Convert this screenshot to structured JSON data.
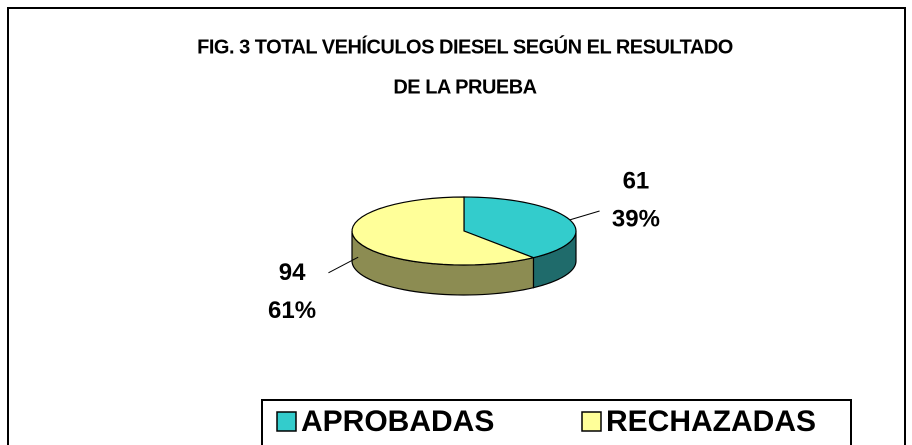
{
  "chart_data": {
    "type": "pie3d",
    "title": [
      "FIG. 3 TOTAL VEHÍCULOS DIESEL SEGÚN EL RESULTADO",
      "DE LA PRUEBA"
    ],
    "categories": [
      "APROBADAS",
      "RECHAZADAS"
    ],
    "values": [
      61,
      94
    ],
    "percent_labels": [
      "39%",
      "61%"
    ],
    "colors": [
      "#33CCCC",
      "#FFFF99"
    ],
    "side_colors": [
      "#1F6B6B",
      "#8C8C52"
    ],
    "legend": "bottom"
  }
}
